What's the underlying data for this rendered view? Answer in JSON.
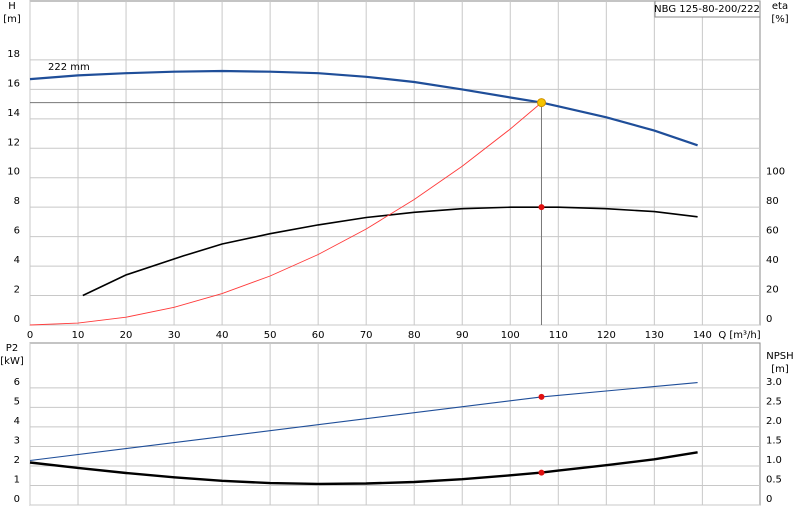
{
  "chart_data": [
    {
      "type": "line",
      "title": "NBG 125-80-200/222",
      "x_label": "Q [m³/h]",
      "y_label": [
        "H",
        "[m]"
      ],
      "y2_label": [
        "eta",
        "[%]"
      ],
      "xlim": [
        0,
        152
      ],
      "xticks": [
        0,
        10,
        20,
        30,
        40,
        50,
        60,
        70,
        80,
        90,
        100,
        110,
        120,
        130,
        140
      ],
      "ylim": [
        0,
        22
      ],
      "yticks": [
        0,
        2,
        4,
        6,
        8,
        10,
        12,
        14,
        16,
        18
      ],
      "y2lim": [
        0,
        220
      ],
      "y2ticks": [
        0,
        20,
        40,
        60,
        80,
        100
      ],
      "grid": true,
      "series": [
        {
          "name": "222 mm",
          "color": "#1f4e99",
          "line_width": 2.2,
          "x": [
            0,
            10,
            20,
            30,
            40,
            50,
            60,
            70,
            80,
            90,
            100,
            106.5,
            110,
            120,
            130,
            139
          ],
          "y": [
            16.7,
            16.95,
            17.1,
            17.2,
            17.25,
            17.2,
            17.1,
            16.85,
            16.5,
            16.0,
            15.45,
            15.1,
            14.85,
            14.1,
            13.2,
            12.2
          ]
        },
        {
          "color": "#000000",
          "line_width": 1.6,
          "axis": "y2",
          "x": [
            11,
            20,
            32,
            40,
            50,
            60,
            70,
            80,
            90,
            100,
            110,
            120,
            130,
            139
          ],
          "y": [
            20,
            34,
            47,
            55,
            62,
            68,
            73,
            76.5,
            79,
            80,
            80,
            79,
            77,
            73.5
          ]
        },
        {
          "color": "#ff3b3b",
          "line_width": 0.9,
          "x": [
            0,
            10,
            20,
            30,
            40,
            50,
            60,
            70,
            80,
            90,
            100,
            106.5
          ],
          "y": [
            0,
            0.13,
            0.53,
            1.2,
            2.13,
            3.33,
            4.79,
            6.52,
            8.52,
            10.78,
            13.31,
            15.1
          ]
        }
      ],
      "points": [
        {
          "x": 106.5,
          "y": 15.1,
          "color": "#f5c400",
          "guides": true
        },
        {
          "x": 106.5,
          "y": 80,
          "axis": "y2",
          "color": "#e01010"
        }
      ]
    },
    {
      "type": "line",
      "y_label": [
        "P2",
        "[kW]"
      ],
      "y2_label": [
        "NPSH",
        "[m]"
      ],
      "xlim": [
        0,
        152
      ],
      "ylim": [
        0,
        8.3
      ],
      "yticks": [
        0,
        1,
        2,
        3,
        4,
        5,
        6
      ],
      "y2lim": [
        0,
        4.15
      ],
      "y2ticks": [
        0,
        0.5,
        {
          "value": 1,
          "label": "1.0"
        },
        1.5,
        {
          "value": 2,
          "label": "2.0"
        },
        2.5,
        {
          "value": 3,
          "label": "3.0"
        }
      ],
      "grid": true,
      "series": [
        {
          "color": "#1f4e99",
          "line_width": 1.1,
          "x": [
            0,
            106.5,
            139
          ],
          "y": [
            2.28,
            5.54,
            6.27
          ]
        },
        {
          "color": "#000000",
          "line_width": 2.4,
          "axis": "y2",
          "x": [
            0,
            10,
            20,
            30,
            40,
            50,
            60,
            70,
            80,
            90,
            100,
            106.5,
            110,
            120,
            130,
            139
          ],
          "y": [
            1.09,
            0.95,
            0.82,
            0.71,
            0.62,
            0.56,
            0.54,
            0.55,
            0.59,
            0.66,
            0.76,
            0.83,
            0.88,
            1.02,
            1.17,
            1.35
          ]
        }
      ],
      "points": [
        {
          "x": 106.5,
          "y": 5.54,
          "color": "#e01010"
        },
        {
          "x": 106.5,
          "y": 0.83,
          "axis": "y2",
          "color": "#e01010"
        }
      ]
    }
  ]
}
